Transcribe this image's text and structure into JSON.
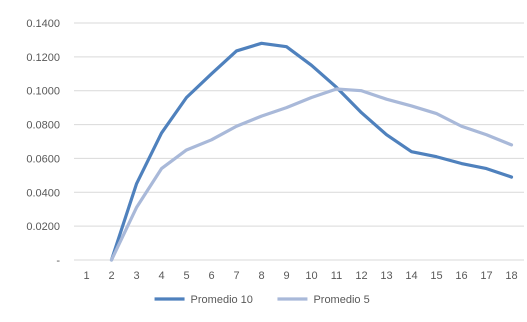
{
  "chart_data": {
    "type": "line",
    "title": "",
    "xlabel": "",
    "ylabel": "",
    "x": [
      "1",
      "2",
      "3",
      "4",
      "5",
      "6",
      "7",
      "8",
      "9",
      "10",
      "11",
      "12",
      "13",
      "14",
      "15",
      "16",
      "17",
      "18"
    ],
    "ylim": [
      0,
      0.14
    ],
    "y_ticks": [
      0,
      0.02,
      0.04,
      0.06,
      0.08,
      0.1,
      0.12,
      0.14
    ],
    "y_tick_labels": [
      "-",
      "0.0200",
      "0.0400",
      "0.0600",
      "0.0800",
      "0.1000",
      "0.1200",
      "0.1400"
    ],
    "grid": "horizontal",
    "legend_position": "bottom",
    "series": [
      {
        "name": "Promedio 10",
        "color": "#4f81bd",
        "values": [
          null,
          0.0,
          0.045,
          0.075,
          0.096,
          0.11,
          0.1235,
          0.128,
          0.126,
          0.115,
          0.102,
          0.087,
          0.074,
          0.064,
          0.061,
          0.057,
          0.054,
          0.049
        ]
      },
      {
        "name": "Promedio 5",
        "color": "#a9b9d9",
        "values": [
          null,
          0.0,
          0.031,
          0.054,
          0.065,
          0.071,
          0.079,
          0.085,
          0.09,
          0.096,
          0.101,
          0.1,
          0.095,
          0.091,
          0.0865,
          0.079,
          0.074,
          0.068
        ]
      }
    ]
  }
}
